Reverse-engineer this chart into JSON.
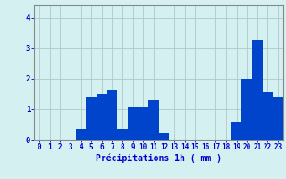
{
  "hours": [
    0,
    1,
    2,
    3,
    4,
    5,
    6,
    7,
    8,
    9,
    10,
    11,
    12,
    13,
    14,
    15,
    16,
    17,
    18,
    19,
    20,
    21,
    22,
    23
  ],
  "values": [
    0,
    0,
    0,
    0,
    0.35,
    1.4,
    1.5,
    1.65,
    0.35,
    1.05,
    1.05,
    1.3,
    0.2,
    0,
    0,
    0,
    0,
    0,
    0,
    0.6,
    2.0,
    3.25,
    1.55,
    1.4
  ],
  "bar_color": "#0044cc",
  "background_color": "#d4f0f0",
  "grid_color": "#b0c8c8",
  "spine_color": "#888888",
  "xlabel": "Précipitations 1h ( mm )",
  "ylim": [
    0,
    4.4
  ],
  "yticks": [
    0,
    1,
    2,
    3,
    4
  ],
  "tick_color": "#0000cc",
  "xlabel_color": "#0000cc",
  "tick_fontsize": 5.5,
  "xlabel_fontsize": 7.0
}
